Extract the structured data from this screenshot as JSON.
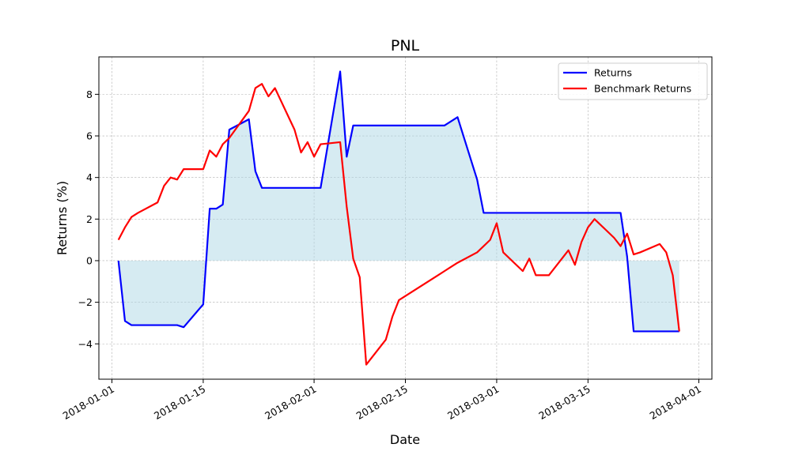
{
  "chart_data": {
    "type": "line",
    "title": "PNL",
    "xlabel": "Date",
    "ylabel": "Returns (%)",
    "xlim": [
      "2017-12-30",
      "2018-04-03"
    ],
    "ylim": [
      -5.7,
      9.8
    ],
    "x_ticks": [
      "2018-01-01",
      "2018-01-15",
      "2018-02-01",
      "2018-02-15",
      "2018-03-01",
      "2018-03-15",
      "2018-04-01"
    ],
    "y_ticks": [
      -4,
      -2,
      0,
      2,
      4,
      6,
      8
    ],
    "y_tick_labels": [
      "−4",
      "−2",
      "0",
      "2",
      "4",
      "6",
      "8"
    ],
    "grid": true,
    "legend_position": "top-right",
    "fill_between": {
      "series": "Returns",
      "baseline": 0,
      "color": "#add8e6"
    },
    "series": [
      {
        "name": "Returns",
        "color": "#0000ff",
        "x": [
          "2018-01-02",
          "2018-01-03",
          "2018-01-04",
          "2018-01-05",
          "2018-01-08",
          "2018-01-09",
          "2018-01-10",
          "2018-01-11",
          "2018-01-12",
          "2018-01-15",
          "2018-01-16",
          "2018-01-17",
          "2018-01-18",
          "2018-01-19",
          "2018-01-22",
          "2018-01-23",
          "2018-01-24",
          "2018-01-25",
          "2018-01-26",
          "2018-01-29",
          "2018-01-30",
          "2018-01-31",
          "2018-02-01",
          "2018-02-02",
          "2018-02-05",
          "2018-02-06",
          "2018-02-07",
          "2018-02-08",
          "2018-02-09",
          "2018-02-12",
          "2018-02-13",
          "2018-02-14",
          "2018-02-15",
          "2018-02-16",
          "2018-02-20",
          "2018-02-21",
          "2018-02-22",
          "2018-02-23",
          "2018-02-26",
          "2018-02-27",
          "2018-02-28",
          "2018-03-01",
          "2018-03-02",
          "2018-03-05",
          "2018-03-06",
          "2018-03-07",
          "2018-03-08",
          "2018-03-09",
          "2018-03-12",
          "2018-03-13",
          "2018-03-14",
          "2018-03-15",
          "2018-03-16",
          "2018-03-19",
          "2018-03-20",
          "2018-03-21",
          "2018-03-22",
          "2018-03-23",
          "2018-03-26",
          "2018-03-27",
          "2018-03-28",
          "2018-03-29"
        ],
        "values": [
          0.0,
          -2.9,
          -3.1,
          -3.1,
          -3.1,
          -3.1,
          -3.1,
          -3.1,
          -3.2,
          -2.1,
          2.5,
          2.5,
          2.7,
          6.3,
          6.8,
          4.3,
          3.5,
          3.5,
          3.5,
          3.5,
          3.5,
          3.5,
          3.5,
          3.5,
          9.1,
          5.0,
          6.5,
          6.5,
          6.5,
          6.5,
          6.5,
          6.5,
          6.5,
          6.5,
          6.5,
          6.5,
          6.7,
          6.9,
          3.9,
          2.3,
          2.3,
          2.3,
          2.3,
          2.3,
          2.3,
          2.3,
          2.3,
          2.3,
          2.3,
          2.3,
          2.3,
          2.3,
          2.3,
          2.3,
          2.3,
          0.2,
          -3.4,
          -3.4,
          -3.4,
          -3.4,
          -3.4,
          -3.4
        ]
      },
      {
        "name": "Benchmark Returns",
        "color": "#ff0000",
        "x": [
          "2018-01-02",
          "2018-01-03",
          "2018-01-04",
          "2018-01-05",
          "2018-01-08",
          "2018-01-09",
          "2018-01-10",
          "2018-01-11",
          "2018-01-12",
          "2018-01-15",
          "2018-01-16",
          "2018-01-17",
          "2018-01-18",
          "2018-01-19",
          "2018-01-22",
          "2018-01-23",
          "2018-01-24",
          "2018-01-25",
          "2018-01-26",
          "2018-01-29",
          "2018-01-30",
          "2018-01-31",
          "2018-02-01",
          "2018-02-02",
          "2018-02-05",
          "2018-02-06",
          "2018-02-07",
          "2018-02-08",
          "2018-02-09",
          "2018-02-12",
          "2018-02-13",
          "2018-02-14",
          "2018-02-15",
          "2018-02-16",
          "2018-02-20",
          "2018-02-21",
          "2018-02-22",
          "2018-02-23",
          "2018-02-26",
          "2018-02-27",
          "2018-02-28",
          "2018-03-01",
          "2018-03-02",
          "2018-03-05",
          "2018-03-06",
          "2018-03-07",
          "2018-03-08",
          "2018-03-09",
          "2018-03-12",
          "2018-03-13",
          "2018-03-14",
          "2018-03-15",
          "2018-03-16",
          "2018-03-19",
          "2018-03-20",
          "2018-03-21",
          "2018-03-22",
          "2018-03-23",
          "2018-03-26",
          "2018-03-27",
          "2018-03-28",
          "2018-03-29"
        ],
        "values": [
          1.0,
          1.6,
          2.1,
          2.3,
          2.8,
          3.6,
          4.0,
          3.9,
          4.4,
          4.4,
          5.3,
          5.0,
          5.6,
          5.9,
          7.2,
          8.3,
          8.5,
          7.9,
          8.3,
          6.3,
          5.2,
          5.7,
          5.0,
          5.6,
          5.7,
          2.6,
          0.1,
          -0.8,
          -5.0,
          -3.8,
          -2.7,
          -1.9,
          -1.7,
          -1.5,
          -0.7,
          -0.5,
          -0.3,
          -0.1,
          0.4,
          0.7,
          1.0,
          1.8,
          0.4,
          -0.5,
          0.1,
          -0.7,
          -0.7,
          -0.7,
          0.5,
          -0.2,
          0.9,
          1.6,
          2.0,
          1.1,
          0.7,
          1.3,
          0.3,
          0.4,
          0.8,
          0.4,
          -0.7,
          -3.4
        ]
      }
    ]
  }
}
